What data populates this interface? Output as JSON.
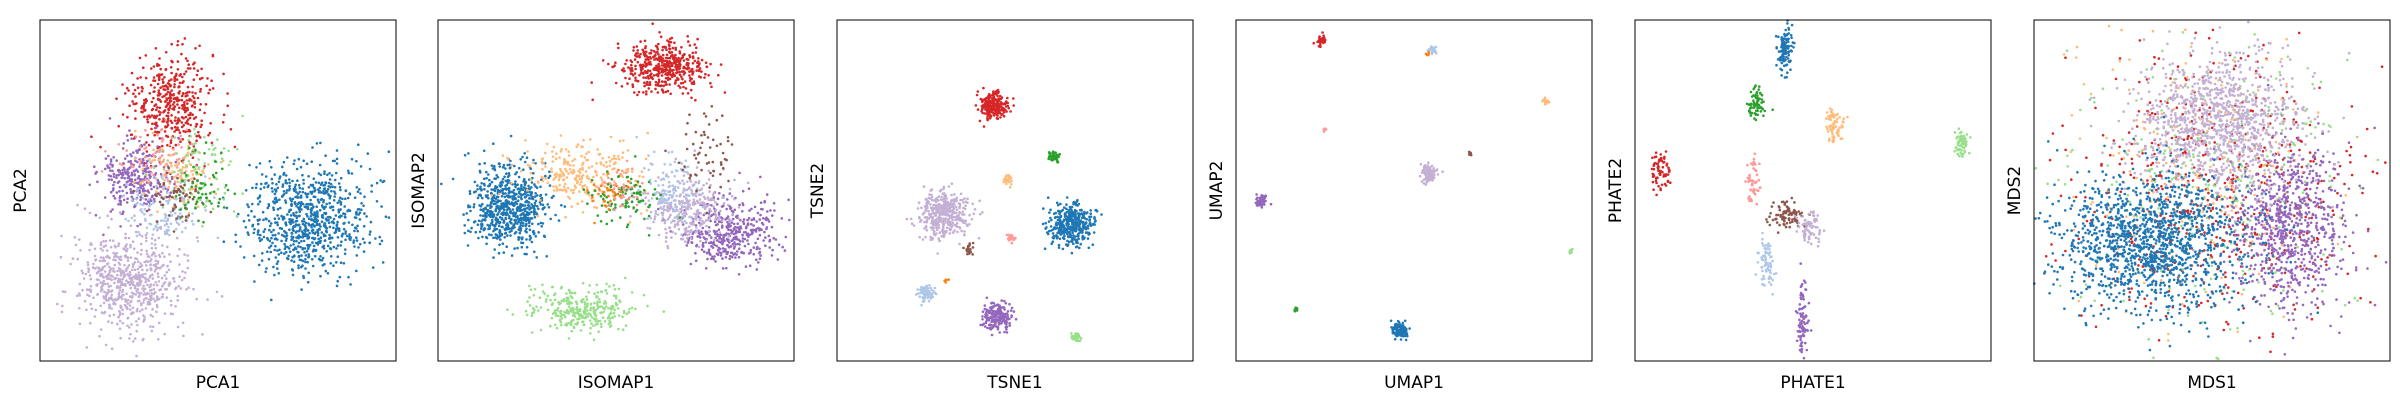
{
  "colors": {
    "tab_blue": "#1f77b4",
    "tab_red": "#d62728",
    "tab_purple": "#9467bd",
    "tab_lavender": "#c5b0d5",
    "tab_lightgreen": "#98df8a",
    "tab_green": "#2ca02c",
    "tab_peach": "#ffbb78",
    "tab_brown": "#8c564b",
    "tab_pink": "#ff9896",
    "tab_lightblue": "#aec7e8",
    "tab_orange": "#ff7f0e",
    "axis": "#000000"
  },
  "chart_data": [
    {
      "type": "scatter",
      "xlabel": "PCA1",
      "ylabel": "PCA2",
      "xlim": [
        0,
        1
      ],
      "ylim": [
        0,
        1
      ],
      "ticks": "none",
      "grid": false,
      "clusters": [
        {
          "color": "tab_blue",
          "cx": 0.75,
          "cy": 0.42,
          "sx": 0.085,
          "sy": 0.08,
          "n": 800
        },
        {
          "color": "tab_red",
          "cx": 0.37,
          "cy": 0.75,
          "sx": 0.06,
          "sy": 0.075,
          "n": 420
        },
        {
          "color": "tab_lavender",
          "cx": 0.25,
          "cy": 0.23,
          "sx": 0.075,
          "sy": 0.075,
          "n": 650
        },
        {
          "color": "tab_purple",
          "cx": 0.27,
          "cy": 0.53,
          "sx": 0.05,
          "sy": 0.055,
          "n": 300
        },
        {
          "color": "tab_peach",
          "cx": 0.38,
          "cy": 0.55,
          "sx": 0.05,
          "sy": 0.05,
          "n": 120
        },
        {
          "color": "tab_lightblue",
          "cx": 0.34,
          "cy": 0.45,
          "sx": 0.05,
          "sy": 0.05,
          "n": 120
        },
        {
          "color": "tab_lightgreen",
          "cx": 0.45,
          "cy": 0.55,
          "sx": 0.05,
          "sy": 0.06,
          "n": 90
        },
        {
          "color": "tab_brown",
          "cx": 0.38,
          "cy": 0.48,
          "sx": 0.04,
          "sy": 0.04,
          "n": 60
        },
        {
          "color": "tab_green",
          "cx": 0.45,
          "cy": 0.5,
          "sx": 0.04,
          "sy": 0.05,
          "n": 60
        },
        {
          "color": "tab_pink",
          "cx": 0.33,
          "cy": 0.6,
          "sx": 0.05,
          "sy": 0.05,
          "n": 60
        }
      ]
    },
    {
      "type": "scatter",
      "xlabel": "ISOMAP1",
      "ylabel": "ISOMAP2",
      "xlim": [
        0,
        1
      ],
      "ylim": [
        0,
        1
      ],
      "ticks": "none",
      "grid": false,
      "clusters": [
        {
          "color": "tab_red",
          "cx": 0.63,
          "cy": 0.86,
          "sx": 0.06,
          "sy": 0.035,
          "n": 450
        },
        {
          "color": "tab_blue",
          "cx": 0.2,
          "cy": 0.45,
          "sx": 0.055,
          "sy": 0.06,
          "n": 700
        },
        {
          "color": "tab_purple",
          "cx": 0.82,
          "cy": 0.38,
          "sx": 0.07,
          "sy": 0.05,
          "n": 400
        },
        {
          "color": "tab_lavender",
          "cx": 0.7,
          "cy": 0.45,
          "sx": 0.06,
          "sy": 0.05,
          "n": 300
        },
        {
          "color": "tab_lightgreen",
          "cx": 0.4,
          "cy": 0.15,
          "sx": 0.07,
          "sy": 0.035,
          "n": 300
        },
        {
          "color": "tab_peach",
          "cx": 0.4,
          "cy": 0.55,
          "sx": 0.08,
          "sy": 0.05,
          "n": 250
        },
        {
          "color": "tab_lightblue",
          "cx": 0.65,
          "cy": 0.5,
          "sx": 0.05,
          "sy": 0.05,
          "n": 120
        },
        {
          "color": "tab_green",
          "cx": 0.52,
          "cy": 0.48,
          "sx": 0.05,
          "sy": 0.04,
          "n": 100
        },
        {
          "color": "tab_brown",
          "cx": 0.75,
          "cy": 0.6,
          "sx": 0.04,
          "sy": 0.08,
          "n": 60
        },
        {
          "color": "tab_pink",
          "cx": 0.52,
          "cy": 0.5,
          "sx": 0.03,
          "sy": 0.03,
          "n": 40
        },
        {
          "color": "tab_orange",
          "cx": 0.48,
          "cy": 0.5,
          "sx": 0.03,
          "sy": 0.03,
          "n": 30
        }
      ]
    },
    {
      "type": "scatter",
      "xlabel": "TSNE1",
      "ylabel": "TSNE2",
      "xlim": [
        0,
        1
      ],
      "ylim": [
        0,
        1
      ],
      "ticks": "none",
      "grid": false,
      "clusters": [
        {
          "color": "tab_red",
          "cx": 0.44,
          "cy": 0.75,
          "sx": 0.018,
          "sy": 0.018,
          "n": 250
        },
        {
          "color": "tab_lavender",
          "cx": 0.3,
          "cy": 0.43,
          "sx": 0.035,
          "sy": 0.035,
          "n": 400
        },
        {
          "color": "tab_blue",
          "cx": 0.66,
          "cy": 0.4,
          "sx": 0.03,
          "sy": 0.03,
          "n": 400
        },
        {
          "color": "tab_green",
          "cx": 0.61,
          "cy": 0.6,
          "sx": 0.008,
          "sy": 0.008,
          "n": 40
        },
        {
          "color": "tab_peach",
          "cx": 0.48,
          "cy": 0.53,
          "sx": 0.007,
          "sy": 0.007,
          "n": 30
        },
        {
          "color": "tab_pink",
          "cx": 0.49,
          "cy": 0.36,
          "sx": 0.006,
          "sy": 0.006,
          "n": 20
        },
        {
          "color": "tab_brown",
          "cx": 0.37,
          "cy": 0.33,
          "sx": 0.006,
          "sy": 0.008,
          "n": 20
        },
        {
          "color": "tab_lightblue",
          "cx": 0.25,
          "cy": 0.2,
          "sx": 0.012,
          "sy": 0.012,
          "n": 80
        },
        {
          "color": "tab_purple",
          "cx": 0.45,
          "cy": 0.13,
          "sx": 0.02,
          "sy": 0.02,
          "n": 200
        },
        {
          "color": "tab_lightgreen",
          "cx": 0.67,
          "cy": 0.07,
          "sx": 0.007,
          "sy": 0.008,
          "n": 35
        },
        {
          "color": "tab_orange",
          "cx": 0.31,
          "cy": 0.24,
          "sx": 0.004,
          "sy": 0.004,
          "n": 5
        }
      ]
    },
    {
      "type": "scatter",
      "xlabel": "UMAP1",
      "ylabel": "UMAP2",
      "xlim": [
        0,
        1
      ],
      "ylim": [
        0,
        1
      ],
      "ticks": "none",
      "grid": false,
      "clusters": [
        {
          "color": "tab_red",
          "cx": 0.24,
          "cy": 0.94,
          "sx": 0.008,
          "sy": 0.008,
          "n": 40
        },
        {
          "color": "tab_lightblue",
          "cx": 0.55,
          "cy": 0.91,
          "sx": 0.006,
          "sy": 0.006,
          "n": 25
        },
        {
          "color": "tab_orange",
          "cx": 0.54,
          "cy": 0.9,
          "sx": 0.003,
          "sy": 0.003,
          "n": 5
        },
        {
          "color": "tab_peach",
          "cx": 0.87,
          "cy": 0.76,
          "sx": 0.004,
          "sy": 0.004,
          "n": 15
        },
        {
          "color": "tab_pink",
          "cx": 0.25,
          "cy": 0.68,
          "sx": 0.003,
          "sy": 0.003,
          "n": 8
        },
        {
          "color": "tab_brown",
          "cx": 0.66,
          "cy": 0.61,
          "sx": 0.003,
          "sy": 0.003,
          "n": 8
        },
        {
          "color": "tab_lavender",
          "cx": 0.54,
          "cy": 0.55,
          "sx": 0.012,
          "sy": 0.014,
          "n": 120
        },
        {
          "color": "tab_purple",
          "cx": 0.07,
          "cy": 0.47,
          "sx": 0.008,
          "sy": 0.009,
          "n": 50
        },
        {
          "color": "tab_lightgreen",
          "cx": 0.94,
          "cy": 0.32,
          "sx": 0.004,
          "sy": 0.004,
          "n": 12
        },
        {
          "color": "tab_green",
          "cx": 0.17,
          "cy": 0.15,
          "sx": 0.003,
          "sy": 0.003,
          "n": 10
        },
        {
          "color": "tab_blue",
          "cx": 0.46,
          "cy": 0.09,
          "sx": 0.011,
          "sy": 0.012,
          "n": 120
        }
      ]
    },
    {
      "type": "scatter",
      "xlabel": "PHATE1",
      "ylabel": "PHATE2",
      "xlim": [
        0,
        1
      ],
      "ylim": [
        0,
        1
      ],
      "ticks": "none",
      "grid": false,
      "clusters": [
        {
          "color": "tab_blue",
          "cx": 0.42,
          "cy": 0.91,
          "sx": 0.01,
          "sy": 0.035,
          "n": 120
        },
        {
          "color": "tab_green",
          "cx": 0.34,
          "cy": 0.75,
          "sx": 0.012,
          "sy": 0.025,
          "n": 70
        },
        {
          "color": "tab_peach",
          "cx": 0.56,
          "cy": 0.69,
          "sx": 0.012,
          "sy": 0.025,
          "n": 70
        },
        {
          "color": "tab_lightgreen",
          "cx": 0.92,
          "cy": 0.64,
          "sx": 0.01,
          "sy": 0.02,
          "n": 60
        },
        {
          "color": "tab_red",
          "cx": 0.07,
          "cy": 0.56,
          "sx": 0.012,
          "sy": 0.03,
          "n": 70
        },
        {
          "color": "tab_pink",
          "cx": 0.33,
          "cy": 0.53,
          "sx": 0.008,
          "sy": 0.035,
          "n": 50
        },
        {
          "color": "tab_brown",
          "cx": 0.42,
          "cy": 0.43,
          "sx": 0.025,
          "sy": 0.018,
          "n": 90
        },
        {
          "color": "tab_lavender",
          "cx": 0.49,
          "cy": 0.39,
          "sx": 0.015,
          "sy": 0.025,
          "n": 70
        },
        {
          "color": "tab_lightblue",
          "cx": 0.37,
          "cy": 0.29,
          "sx": 0.012,
          "sy": 0.04,
          "n": 70
        },
        {
          "color": "tab_purple",
          "cx": 0.47,
          "cy": 0.1,
          "sx": 0.008,
          "sy": 0.06,
          "n": 90
        }
      ]
    },
    {
      "type": "scatter",
      "xlabel": "MDS1",
      "ylabel": "MDS2",
      "xlim": [
        0,
        1
      ],
      "ylim": [
        0,
        1
      ],
      "ticks": "none",
      "grid": false,
      "clusters": [
        {
          "color": "tab_red",
          "cx": 0.5,
          "cy": 0.5,
          "sx": 0.2,
          "sy": 0.2,
          "n": 550
        },
        {
          "color": "tab_lightgreen",
          "cx": 0.5,
          "cy": 0.55,
          "sx": 0.2,
          "sy": 0.2,
          "n": 300
        },
        {
          "color": "tab_peach",
          "cx": 0.45,
          "cy": 0.55,
          "sx": 0.2,
          "sy": 0.2,
          "n": 250
        },
        {
          "color": "tab_purple",
          "cx": 0.72,
          "cy": 0.4,
          "sx": 0.08,
          "sy": 0.12,
          "n": 800
        },
        {
          "color": "tab_lavender",
          "cx": 0.52,
          "cy": 0.7,
          "sx": 0.12,
          "sy": 0.1,
          "n": 1100
        },
        {
          "color": "tab_blue",
          "cx": 0.33,
          "cy": 0.35,
          "sx": 0.13,
          "sy": 0.1,
          "n": 1400
        }
      ]
    }
  ]
}
